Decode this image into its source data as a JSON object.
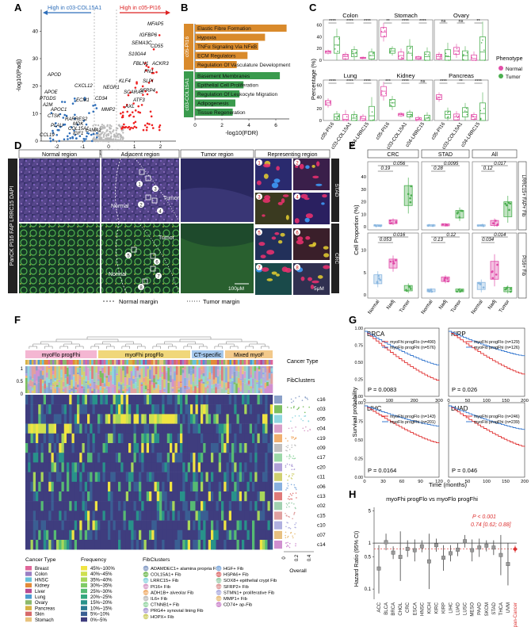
{
  "panels": {
    "A": {
      "letter": "A",
      "left_label": "High in c03-COL15A1",
      "right_label": "High in c05-PI16",
      "xlabel": "Log2(Fold change)",
      "ylabel": "-log10(Padj)",
      "x_ticks": [
        "-2",
        "-1",
        "0",
        "1",
        "2"
      ],
      "y_ticks": [
        "0",
        "10",
        "20",
        "30",
        "40"
      ],
      "up_genes": [
        "MFAP5",
        "IGFBP6",
        "SEMA3C",
        "CD55",
        "S100A4",
        "FBLN1",
        "ACKR3",
        "FN1",
        "KLF4",
        "SLPI",
        "SFRP4",
        "SCARA5",
        "ATF3",
        "AXL"
      ],
      "down_genes": [
        "APOD",
        "APOE",
        "CXCL12",
        "PTGDS",
        "A2M",
        "APOC1",
        "CTSK",
        "RARRES2",
        "PLAU",
        "MDK",
        "COL15A1",
        "IGF1",
        "LAMA2",
        "CCL19",
        "ECM1",
        "CD34",
        "NEGR1",
        "MMP2"
      ]
    },
    "B": {
      "letter": "B",
      "group1_label": "c05-PI16",
      "group2_label": "c03-COL15A1",
      "xlabel": "-log10(FDR)",
      "x_ticks": [
        "0",
        "2",
        "4",
        "6"
      ],
      "group1_terms": [
        {
          "term": "Elastic Fibre Formation",
          "value": 6.8
        },
        {
          "term": "Hypoxia",
          "value": 5.2
        },
        {
          "term": "TNFα Signaling Via NFκB",
          "value": 4.7
        },
        {
          "term": "ECM Regulators",
          "value": 3.9
        },
        {
          "term": "Regulation Of Vasculature Development",
          "value": 3.1
        }
      ],
      "group2_terms": [
        {
          "term": "Basement Membranes",
          "value": 6.3
        },
        {
          "term": "Epithelial Cell Proliferation",
          "value": 3.6
        },
        {
          "term": "Regulation Of Leukocyte Migration",
          "value": 3.3
        },
        {
          "term": "Adipogenesis",
          "value": 3.0
        },
        {
          "term": "Tissue Regeneration",
          "value": 2.8
        }
      ]
    },
    "C": {
      "letter": "C",
      "ylabel": "Percentage (%)",
      "x_labels": [
        "c05-PI16",
        "c03-COL15A1",
        "c04-LRRC15"
      ],
      "legend_title": "Phenotype",
      "legend_items": [
        "Normal",
        "Tumor"
      ],
      "y_ticks_top": [
        "0",
        "20",
        "40",
        "60"
      ],
      "y_ticks_bottom": [
        "0",
        "20",
        "40",
        "60"
      ],
      "facets": [
        {
          "name": "Colon",
          "sig": [
            "****",
            "****",
            "****"
          ]
        },
        {
          "name": "Stomach",
          "sig": [
            "**",
            "****",
            "****"
          ]
        },
        {
          "name": "Ovary",
          "sig": [
            "ns",
            "ns",
            "**"
          ]
        },
        {
          "name": "Lung",
          "sig": [
            "****",
            "****",
            "****"
          ]
        },
        {
          "name": "Kidney",
          "sig": [
            "***",
            "****",
            "ns"
          ]
        },
        {
          "name": "Pancreas",
          "sig": [
            "****",
            "**",
            "****"
          ]
        }
      ]
    },
    "D": {
      "letter": "D",
      "col_titles": [
        "Normal region",
        "Adjacent region",
        "Tumor region",
        "Representing region"
      ],
      "left_side_label": "PanCK PI16 FAP LRRC15 DAPI",
      "row_labels": [
        "STAD",
        "CRC"
      ],
      "in_image_labels": [
        "Normal",
        "Tumor",
        "Tumor",
        "Normal"
      ],
      "numbers": [
        "1",
        "2",
        "3",
        "4",
        "5",
        "6",
        "7",
        "8"
      ],
      "scale_bar_large": "100μM",
      "scale_bar_small": "5μM",
      "legend_normal": "Normal margin",
      "legend_tumor": "Tumor margin"
    },
    "E": {
      "letter": "E",
      "col_titles": [
        "CRC",
        "STAD",
        "All"
      ],
      "row_labels": [
        "LRRC15+ FAP+ Fib",
        "PI16+ Fib"
      ],
      "ylabel": "Cell Proportion (%)",
      "x_labels": [
        "Normal",
        "Nadj",
        "Tumor"
      ],
      "top_pvals": [
        [
          "0.19",
          "0.056"
        ],
        [
          "0.28",
          "0.0095"
        ],
        [
          "0.12",
          "0.017"
        ]
      ],
      "bottom_pvals": [
        [
          "0.053",
          "0.016"
        ],
        [
          "0.13",
          "0.12"
        ],
        [
          "0.034",
          "0.014"
        ]
      ],
      "y_ticks_top": [
        "0",
        "10",
        "20",
        "30",
        "40"
      ],
      "y_ticks_bottom": [
        "0",
        "5",
        "10"
      ]
    },
    "F": {
      "letter": "F",
      "groups": [
        "myoFlo progFhi",
        "myoFhi progFlo",
        "CT-specific",
        "Mixed myoF"
      ],
      "cancer_type_label": "Cancer Type",
      "fibclusters_label": "FibClusters",
      "frequency_scale": [
        "1",
        "0.5",
        "0"
      ],
      "row_labels": [
        "c16",
        "c03",
        "c05",
        "c04",
        "c19",
        "c09",
        "c17",
        "c20",
        "c11",
        "c06",
        "c13",
        "c02",
        "c15",
        "c10",
        "c07",
        "c14"
      ],
      "overall_label": "Overall",
      "overall_ticks": [
        "0",
        "0.2",
        "0.4"
      ],
      "cancer_types_title": "Cancer Type",
      "cancer_types": [
        {
          "name": "Breast",
          "color": "#e0669a"
        },
        {
          "name": "Colon",
          "color": "#9a7fc3"
        },
        {
          "name": "HNSC",
          "color": "#67c1d9"
        },
        {
          "name": "Kidney",
          "color": "#e28a38"
        },
        {
          "name": "Liver",
          "color": "#b84a93"
        },
        {
          "name": "Lung",
          "color": "#4b9bd0"
        },
        {
          "name": "Ovary",
          "color": "#8bb86b"
        },
        {
          "name": "Pancreas",
          "color": "#d7b243"
        },
        {
          "name": "Skin",
          "color": "#d66a6a"
        },
        {
          "name": "Stomach",
          "color": "#e8c27c"
        }
      ],
      "frequency_title": "Frequency",
      "frequency_bins": [
        {
          "label": "45%~100%",
          "color": "#f0e442"
        },
        {
          "label": "40%~45%",
          "color": "#cfe04f"
        },
        {
          "label": "35%~40%",
          "color": "#a8d75a"
        },
        {
          "label": "30%~35%",
          "color": "#7fcb66"
        },
        {
          "label": "25%~30%",
          "color": "#56bb73"
        },
        {
          "label": "20%~25%",
          "color": "#35a87e"
        },
        {
          "label": "15%~20%",
          "color": "#28928a"
        },
        {
          "label": "10%~15%",
          "color": "#2b7b92"
        },
        {
          "label": "5%~10%",
          "color": "#3a5f93"
        },
        {
          "label": "0%~5%",
          "color": "#3f3d7e"
        }
      ],
      "fibclusters_title": "FibClusters",
      "fibclusters": [
        {
          "id": "c01",
          "name": "ADAMDEC1+ alamina propria Fib",
          "color": "#8aa0c8"
        },
        {
          "id": "c03",
          "name": "COL15A1+ Fib",
          "color": "#7bbf5f"
        },
        {
          "id": "c04",
          "name": "LRRC15+ Fib",
          "color": "#8fd6e0"
        },
        {
          "id": "c05",
          "name": "PI16+ Fib",
          "color": "#d9a0c9"
        },
        {
          "id": "c06",
          "name": "ADH1B+ alveolar Fib",
          "color": "#f0b070"
        },
        {
          "id": "c07",
          "name": "IL6+ Fib",
          "color": "#c0c0c0"
        },
        {
          "id": "c08",
          "name": "CTNNB1+ Fib",
          "color": "#9bd8a8"
        },
        {
          "id": "c09",
          "name": "PRG4+ synovial lining Fib",
          "color": "#b0a0d8"
        },
        {
          "id": "c10",
          "name": "HOPX+ Fib",
          "color": "#d0d070"
        },
        {
          "id": "c11",
          "name": "HGF+ Fib",
          "color": "#88b0e0"
        },
        {
          "id": "c12",
          "name": "HSPA6+ Fib",
          "color": "#e07a7a"
        },
        {
          "id": "c13",
          "name": "SOX8+ epithelial crypt Fib",
          "color": "#a0d0b0"
        },
        {
          "id": "c14",
          "name": "SFRP2+ Fib",
          "color": "#e0a0a0"
        },
        {
          "id": "c15",
          "name": "STMN1+ proliferative Fib",
          "color": "#b0b0e0"
        },
        {
          "id": "c16",
          "name": "MMP1+ Fib",
          "color": "#e8c080"
        },
        {
          "id": "c17",
          "name": "CD74+ ap-Fib",
          "color": "#d090d0"
        }
      ]
    },
    "G": {
      "letter": "G",
      "ylabel": "Survival probability",
      "xlabel": "Time (months)",
      "plots": [
        {
          "title": "BRCA",
          "l1": "myoFhi progFlo (n=490)",
          "l2": "myoFlo progFhi (n=576)",
          "p": "P = 0.0083",
          "ticks": [
            "0",
            "100",
            "200",
            "300"
          ]
        },
        {
          "title": "KIRP",
          "l1": "myoFhi progFlo (n=129)",
          "l2": "myoFlo progFhi (n=126)",
          "p": "P = 0.026",
          "ticks": [
            "0",
            "50",
            "100",
            "150",
            "200"
          ]
        },
        {
          "title": "LIHC",
          "l1": "myoFhi progFlo (n=143)",
          "l2": "myoFlo progFhi (n=201)",
          "p": "P = 0.0164",
          "ticks": [
            "0",
            "30",
            "60",
            "90",
            "120"
          ]
        },
        {
          "title": "LUAD",
          "l1": "myoFhi progFlo (n=246)",
          "l2": "myoFlo progFhi (n=239)",
          "p": "P = 0.046",
          "ticks": [
            "0",
            "50",
            "100",
            "150",
            "200"
          ]
        }
      ],
      "y_ticks": [
        "0.00",
        "0.25",
        "0.50",
        "0.75",
        "1.00"
      ]
    },
    "H": {
      "letter": "H",
      "title": "myoFhi progFlo vs myoFlo progFhi",
      "ylabel": "Hazard Ratio (95% CI)",
      "y_ticks": [
        "0.1",
        "0.5",
        "1",
        "5"
      ],
      "pval": "P < 0.001",
      "hr_text": "0.74 [0.62; 0.88]",
      "cancers": [
        {
          "name": "ACC",
          "hr": 0.28,
          "lo": 0.08,
          "hi": 0.9
        },
        {
          "name": "BLCA",
          "hr": 1.05,
          "lo": 0.7,
          "hi": 1.6
        },
        {
          "name": "BRCA",
          "hr": 0.62,
          "lo": 0.45,
          "hi": 0.85
        },
        {
          "name": "CHOL",
          "hr": 0.5,
          "lo": 0.15,
          "hi": 1.8
        },
        {
          "name": "CRC",
          "hr": 0.75,
          "lo": 0.5,
          "hi": 1.15
        },
        {
          "name": "ESCA",
          "hr": 0.7,
          "lo": 0.4,
          "hi": 1.2
        },
        {
          "name": "HNSC",
          "hr": 0.85,
          "lo": 0.63,
          "hi": 1.15
        },
        {
          "name": "KICH",
          "hr": 0.4,
          "lo": 0.1,
          "hi": 1.6
        },
        {
          "name": "KIRC",
          "hr": 0.9,
          "lo": 0.65,
          "hi": 1.25
        },
        {
          "name": "KIRP",
          "hr": 0.48,
          "lo": 0.25,
          "hi": 0.9
        },
        {
          "name": "LIHC",
          "hr": 0.6,
          "lo": 0.4,
          "hi": 0.9
        },
        {
          "name": "LUAD",
          "hr": 0.72,
          "lo": 0.52,
          "hi": 0.98
        },
        {
          "name": "LUSC",
          "hr": 1.1,
          "lo": 0.8,
          "hi": 1.5
        },
        {
          "name": "MESO",
          "hr": 0.7,
          "lo": 0.4,
          "hi": 1.2
        },
        {
          "name": "PAAD",
          "hr": 0.8,
          "lo": 0.5,
          "hi": 1.25
        },
        {
          "name": "SKCM",
          "hr": 0.88,
          "lo": 0.66,
          "hi": 1.15
        },
        {
          "name": "STAD",
          "hr": 0.8,
          "lo": 0.55,
          "hi": 1.15
        },
        {
          "name": "THCA",
          "hr": 0.55,
          "lo": 0.2,
          "hi": 1.5
        },
        {
          "name": "UVM",
          "hr": 0.35,
          "lo": 0.12,
          "hi": 1.0
        }
      ],
      "pan_cancer": {
        "name": "pan-Cancer",
        "hr": 0.74,
        "lo": 0.62,
        "hi": 0.88
      }
    }
  }
}
